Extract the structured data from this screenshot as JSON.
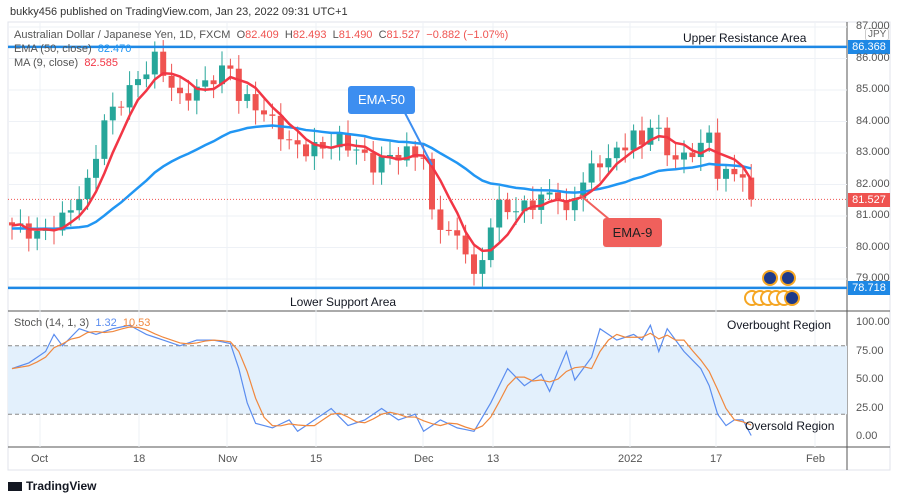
{
  "header": {
    "published": "bukky456 published on TradingView.com, Jan 23, 2022 09:31 UTC+1"
  },
  "legend": {
    "symbol": "Australian Dollar / Japanese Yen, 1D, FXCM",
    "o_label": "O",
    "o": "82.409",
    "h_label": "H",
    "h": "82.493",
    "l_label": "L",
    "l": "81.490",
    "c_label": "C",
    "c": "81.527",
    "change": "−0.882 (−1.07%)",
    "ema_label": "EMA (50, close)",
    "ema_value": "82.470",
    "ma_label": "MA (9, close)",
    "ma_value": "82.585",
    "stoch_label": "Stoch (14, 1, 3)",
    "stoch_k": "1.32",
    "stoch_d": "10.53"
  },
  "annotations": {
    "upper": "Upper Resistance Area",
    "lower": "Lower Support Area",
    "ema50": "EMA-50",
    "ema9": "EMA-9",
    "overbought": "Overbought Region",
    "oversold": "Oversold Region"
  },
  "price_axis": {
    "currency": "JPY",
    "ticks": [
      "87.000",
      "86.000",
      "85.000",
      "84.000",
      "83.000",
      "82.000",
      "81.000",
      "80.000",
      "79.000"
    ],
    "resistance_label": "86.368",
    "last_label": "81.527",
    "support_label": "78.718"
  },
  "stoch_axis": {
    "ticks": [
      "100.00",
      "75.00",
      "50.00",
      "25.00",
      "0.00"
    ]
  },
  "time_axis": {
    "ticks": [
      "Oct",
      "18",
      "Nov",
      "15",
      "Dec",
      "13",
      "2022",
      "17",
      "Feb"
    ]
  },
  "footer": {
    "brand": "TradingView"
  },
  "colors": {
    "up": "#26a69a",
    "down": "#ef5350",
    "ema50": "#2196f3",
    "ma9": "#f23645",
    "level": "#1e88e5",
    "k": "#5b8def",
    "d": "#f0883e"
  },
  "chart_data": {
    "type": "candlestick",
    "title": "Australian Dollar / Japanese Yen, 1D, FXCM",
    "ylim": [
      78.5,
      87.2
    ],
    "levels": {
      "resistance": 86.368,
      "support": 78.718
    },
    "close_keypoints": [
      [
        0,
        80.7
      ],
      [
        3,
        80.4
      ],
      [
        6,
        80.9
      ],
      [
        9,
        82
      ],
      [
        11,
        84
      ],
      [
        14,
        85
      ],
      [
        17,
        86
      ],
      [
        20,
        84.7
      ],
      [
        23,
        85.2
      ],
      [
        25,
        85.6
      ],
      [
        26,
        85.7
      ],
      [
        27,
        84.8
      ],
      [
        29,
        84.5
      ],
      [
        31,
        84
      ],
      [
        33,
        83.3
      ],
      [
        35,
        83.1
      ],
      [
        37,
        83.2
      ],
      [
        39,
        83.4
      ],
      [
        41,
        83.1
      ],
      [
        43,
        82.6
      ],
      [
        45,
        82.9
      ],
      [
        47,
        83
      ],
      [
        49,
        82.9
      ],
      [
        50,
        81
      ],
      [
        52,
        80.5
      ],
      [
        54,
        80
      ],
      [
        55,
        79
      ],
      [
        56,
        79.6
      ],
      [
        57,
        80.8
      ],
      [
        58,
        81.3
      ],
      [
        60,
        81.2
      ],
      [
        62,
        81.4
      ],
      [
        63,
        81.6
      ],
      [
        65,
        81.7
      ],
      [
        66,
        81
      ],
      [
        67,
        81.6
      ],
      [
        68,
        82.2
      ],
      [
        70,
        82.7
      ],
      [
        72,
        83
      ],
      [
        74,
        83.6
      ],
      [
        75,
        83.2
      ],
      [
        76,
        84
      ],
      [
        77,
        83.6
      ],
      [
        78,
        83
      ],
      [
        80,
        82.8
      ],
      [
        82,
        83.3
      ],
      [
        83,
        83.5
      ],
      [
        84,
        82.4
      ],
      [
        86,
        82.3
      ],
      [
        87,
        82.4
      ],
      [
        88,
        81.527
      ]
    ],
    "stoch_k_keypoints": [
      [
        0,
        60
      ],
      [
        2,
        65
      ],
      [
        4,
        75
      ],
      [
        5,
        90
      ],
      [
        6,
        80
      ],
      [
        8,
        95
      ],
      [
        10,
        90
      ],
      [
        12,
        95
      ],
      [
        14,
        98
      ],
      [
        16,
        90
      ],
      [
        18,
        85
      ],
      [
        20,
        80
      ],
      [
        22,
        85
      ],
      [
        24,
        85
      ],
      [
        26,
        82
      ],
      [
        27,
        60
      ],
      [
        28,
        30
      ],
      [
        29,
        12
      ],
      [
        31,
        8
      ],
      [
        33,
        15
      ],
      [
        34,
        5
      ],
      [
        36,
        15
      ],
      [
        38,
        25
      ],
      [
        40,
        10
      ],
      [
        42,
        15
      ],
      [
        44,
        25
      ],
      [
        46,
        15
      ],
      [
        48,
        20
      ],
      [
        49,
        5
      ],
      [
        51,
        15
      ],
      [
        53,
        8
      ],
      [
        55,
        5
      ],
      [
        57,
        30
      ],
      [
        59,
        60
      ],
      [
        61,
        45
      ],
      [
        63,
        55
      ],
      [
        64,
        40
      ],
      [
        66,
        75
      ],
      [
        67,
        50
      ],
      [
        69,
        70
      ],
      [
        70,
        95
      ],
      [
        72,
        85
      ],
      [
        74,
        90
      ],
      [
        75,
        85
      ],
      [
        76,
        98
      ],
      [
        77,
        75
      ],
      [
        78,
        95
      ],
      [
        80,
        75
      ],
      [
        82,
        60
      ],
      [
        83,
        45
      ],
      [
        84,
        20
      ],
      [
        85,
        10
      ],
      [
        86,
        15
      ],
      [
        87,
        15
      ],
      [
        88,
        1.32
      ]
    ],
    "stoch_bands": [
      80,
      20
    ]
  }
}
